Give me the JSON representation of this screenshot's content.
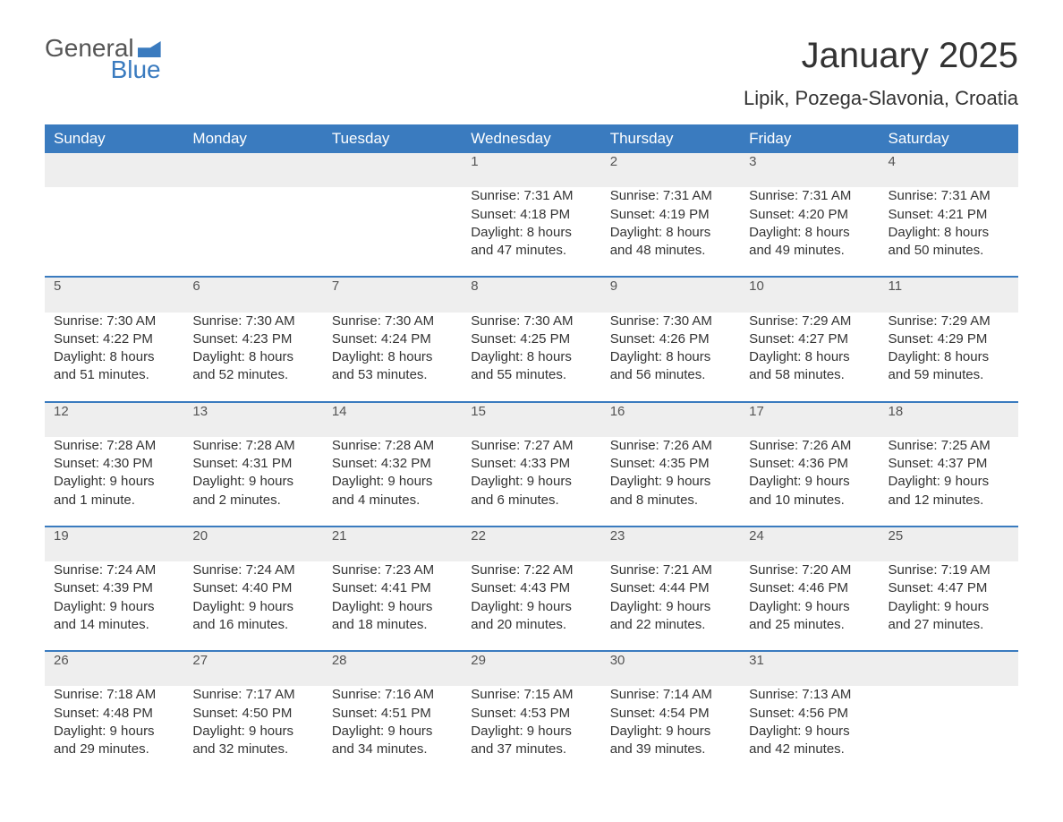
{
  "logo": {
    "general": "General",
    "blue": "Blue"
  },
  "title": "January 2025",
  "location": "Lipik, Pozega-Slavonia, Croatia",
  "colors": {
    "header_bg": "#3a7bbf",
    "header_text": "#ffffff",
    "daynum_bg": "#eeeeee",
    "body_text": "#333333",
    "row_border": "#3a7bbf"
  },
  "weekdays": [
    "Sunday",
    "Monday",
    "Tuesday",
    "Wednesday",
    "Thursday",
    "Friday",
    "Saturday"
  ],
  "weeks": [
    [
      null,
      null,
      null,
      {
        "n": "1",
        "sr": "Sunrise: 7:31 AM",
        "ss": "Sunset: 4:18 PM",
        "d1": "Daylight: 8 hours",
        "d2": "and 47 minutes."
      },
      {
        "n": "2",
        "sr": "Sunrise: 7:31 AM",
        "ss": "Sunset: 4:19 PM",
        "d1": "Daylight: 8 hours",
        "d2": "and 48 minutes."
      },
      {
        "n": "3",
        "sr": "Sunrise: 7:31 AM",
        "ss": "Sunset: 4:20 PM",
        "d1": "Daylight: 8 hours",
        "d2": "and 49 minutes."
      },
      {
        "n": "4",
        "sr": "Sunrise: 7:31 AM",
        "ss": "Sunset: 4:21 PM",
        "d1": "Daylight: 8 hours",
        "d2": "and 50 minutes."
      }
    ],
    [
      {
        "n": "5",
        "sr": "Sunrise: 7:30 AM",
        "ss": "Sunset: 4:22 PM",
        "d1": "Daylight: 8 hours",
        "d2": "and 51 minutes."
      },
      {
        "n": "6",
        "sr": "Sunrise: 7:30 AM",
        "ss": "Sunset: 4:23 PM",
        "d1": "Daylight: 8 hours",
        "d2": "and 52 minutes."
      },
      {
        "n": "7",
        "sr": "Sunrise: 7:30 AM",
        "ss": "Sunset: 4:24 PM",
        "d1": "Daylight: 8 hours",
        "d2": "and 53 minutes."
      },
      {
        "n": "8",
        "sr": "Sunrise: 7:30 AM",
        "ss": "Sunset: 4:25 PM",
        "d1": "Daylight: 8 hours",
        "d2": "and 55 minutes."
      },
      {
        "n": "9",
        "sr": "Sunrise: 7:30 AM",
        "ss": "Sunset: 4:26 PM",
        "d1": "Daylight: 8 hours",
        "d2": "and 56 minutes."
      },
      {
        "n": "10",
        "sr": "Sunrise: 7:29 AM",
        "ss": "Sunset: 4:27 PM",
        "d1": "Daylight: 8 hours",
        "d2": "and 58 minutes."
      },
      {
        "n": "11",
        "sr": "Sunrise: 7:29 AM",
        "ss": "Sunset: 4:29 PM",
        "d1": "Daylight: 8 hours",
        "d2": "and 59 minutes."
      }
    ],
    [
      {
        "n": "12",
        "sr": "Sunrise: 7:28 AM",
        "ss": "Sunset: 4:30 PM",
        "d1": "Daylight: 9 hours",
        "d2": "and 1 minute."
      },
      {
        "n": "13",
        "sr": "Sunrise: 7:28 AM",
        "ss": "Sunset: 4:31 PM",
        "d1": "Daylight: 9 hours",
        "d2": "and 2 minutes."
      },
      {
        "n": "14",
        "sr": "Sunrise: 7:28 AM",
        "ss": "Sunset: 4:32 PM",
        "d1": "Daylight: 9 hours",
        "d2": "and 4 minutes."
      },
      {
        "n": "15",
        "sr": "Sunrise: 7:27 AM",
        "ss": "Sunset: 4:33 PM",
        "d1": "Daylight: 9 hours",
        "d2": "and 6 minutes."
      },
      {
        "n": "16",
        "sr": "Sunrise: 7:26 AM",
        "ss": "Sunset: 4:35 PM",
        "d1": "Daylight: 9 hours",
        "d2": "and 8 minutes."
      },
      {
        "n": "17",
        "sr": "Sunrise: 7:26 AM",
        "ss": "Sunset: 4:36 PM",
        "d1": "Daylight: 9 hours",
        "d2": "and 10 minutes."
      },
      {
        "n": "18",
        "sr": "Sunrise: 7:25 AM",
        "ss": "Sunset: 4:37 PM",
        "d1": "Daylight: 9 hours",
        "d2": "and 12 minutes."
      }
    ],
    [
      {
        "n": "19",
        "sr": "Sunrise: 7:24 AM",
        "ss": "Sunset: 4:39 PM",
        "d1": "Daylight: 9 hours",
        "d2": "and 14 minutes."
      },
      {
        "n": "20",
        "sr": "Sunrise: 7:24 AM",
        "ss": "Sunset: 4:40 PM",
        "d1": "Daylight: 9 hours",
        "d2": "and 16 minutes."
      },
      {
        "n": "21",
        "sr": "Sunrise: 7:23 AM",
        "ss": "Sunset: 4:41 PM",
        "d1": "Daylight: 9 hours",
        "d2": "and 18 minutes."
      },
      {
        "n": "22",
        "sr": "Sunrise: 7:22 AM",
        "ss": "Sunset: 4:43 PM",
        "d1": "Daylight: 9 hours",
        "d2": "and 20 minutes."
      },
      {
        "n": "23",
        "sr": "Sunrise: 7:21 AM",
        "ss": "Sunset: 4:44 PM",
        "d1": "Daylight: 9 hours",
        "d2": "and 22 minutes."
      },
      {
        "n": "24",
        "sr": "Sunrise: 7:20 AM",
        "ss": "Sunset: 4:46 PM",
        "d1": "Daylight: 9 hours",
        "d2": "and 25 minutes."
      },
      {
        "n": "25",
        "sr": "Sunrise: 7:19 AM",
        "ss": "Sunset: 4:47 PM",
        "d1": "Daylight: 9 hours",
        "d2": "and 27 minutes."
      }
    ],
    [
      {
        "n": "26",
        "sr": "Sunrise: 7:18 AM",
        "ss": "Sunset: 4:48 PM",
        "d1": "Daylight: 9 hours",
        "d2": "and 29 minutes."
      },
      {
        "n": "27",
        "sr": "Sunrise: 7:17 AM",
        "ss": "Sunset: 4:50 PM",
        "d1": "Daylight: 9 hours",
        "d2": "and 32 minutes."
      },
      {
        "n": "28",
        "sr": "Sunrise: 7:16 AM",
        "ss": "Sunset: 4:51 PM",
        "d1": "Daylight: 9 hours",
        "d2": "and 34 minutes."
      },
      {
        "n": "29",
        "sr": "Sunrise: 7:15 AM",
        "ss": "Sunset: 4:53 PM",
        "d1": "Daylight: 9 hours",
        "d2": "and 37 minutes."
      },
      {
        "n": "30",
        "sr": "Sunrise: 7:14 AM",
        "ss": "Sunset: 4:54 PM",
        "d1": "Daylight: 9 hours",
        "d2": "and 39 minutes."
      },
      {
        "n": "31",
        "sr": "Sunrise: 7:13 AM",
        "ss": "Sunset: 4:56 PM",
        "d1": "Daylight: 9 hours",
        "d2": "and 42 minutes."
      },
      null
    ]
  ]
}
